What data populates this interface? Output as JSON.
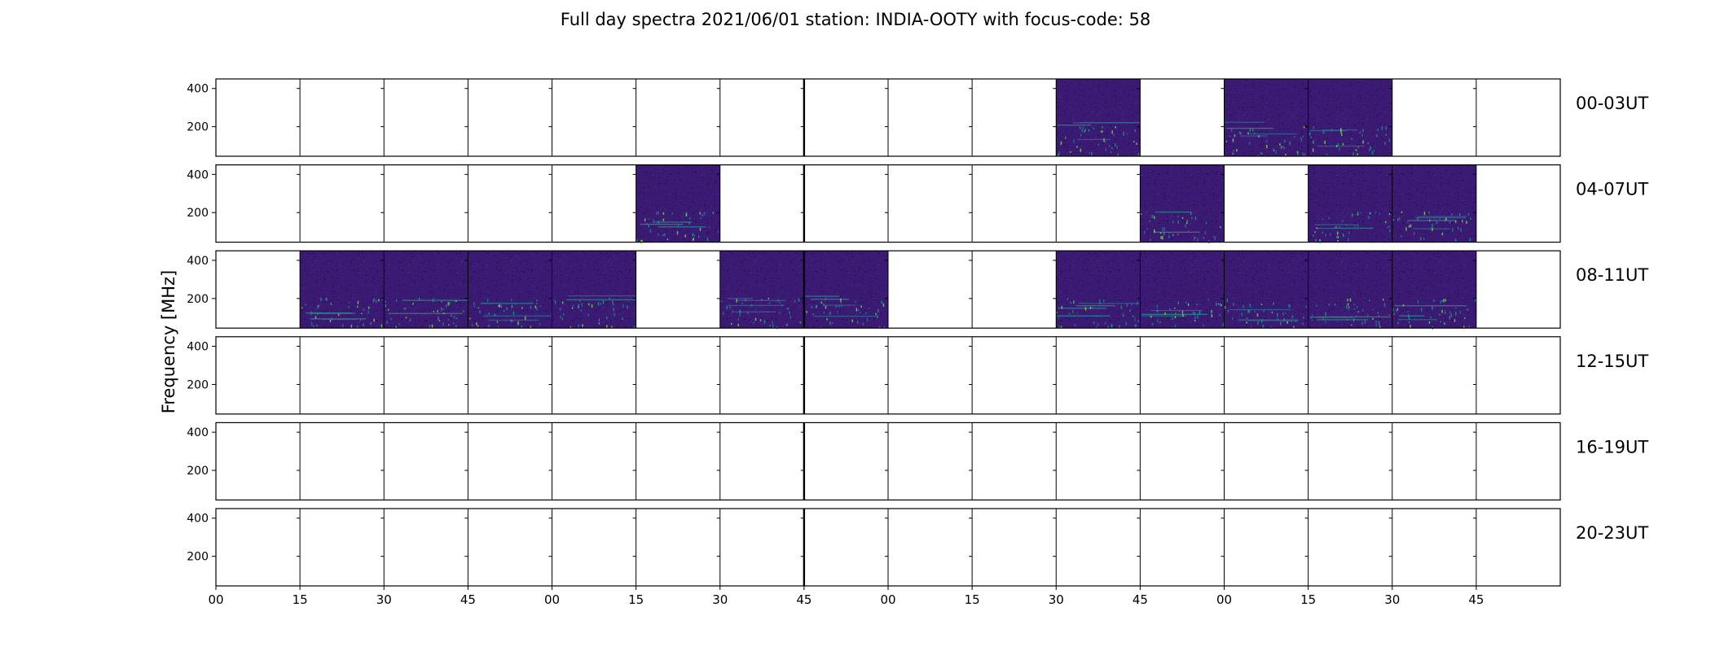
{
  "chart_data": {
    "type": "heatmap",
    "title": "Full day spectra 2021/06/01 station: INDIA-OOTY with focus-code: 58",
    "ylabel": "Frequency [MHz]",
    "ylim": [
      45,
      450
    ],
    "yticks": [
      200,
      400
    ],
    "xtick_labels": [
      "00",
      "15",
      "30",
      "45",
      "00",
      "15",
      "30",
      "45",
      "00",
      "15",
      "30",
      "45",
      "00",
      "15",
      "30",
      "45"
    ],
    "colormap": "viridis",
    "empty_color": "#ffffff",
    "slots_per_row": 16,
    "slot_minutes": 15,
    "rows": [
      {
        "label": "00-03UT",
        "filled_slots": [
          10,
          12,
          13
        ]
      },
      {
        "label": "04-07UT",
        "filled_slots": [
          5,
          11,
          13,
          14
        ]
      },
      {
        "label": "08-11UT",
        "filled_slots": [
          1,
          2,
          3,
          4,
          6,
          7,
          10,
          11,
          12,
          13,
          14
        ]
      },
      {
        "label": "12-15UT",
        "filled_slots": []
      },
      {
        "label": "16-19UT",
        "filled_slots": []
      },
      {
        "label": "20-23UT",
        "filled_slots": []
      }
    ]
  }
}
